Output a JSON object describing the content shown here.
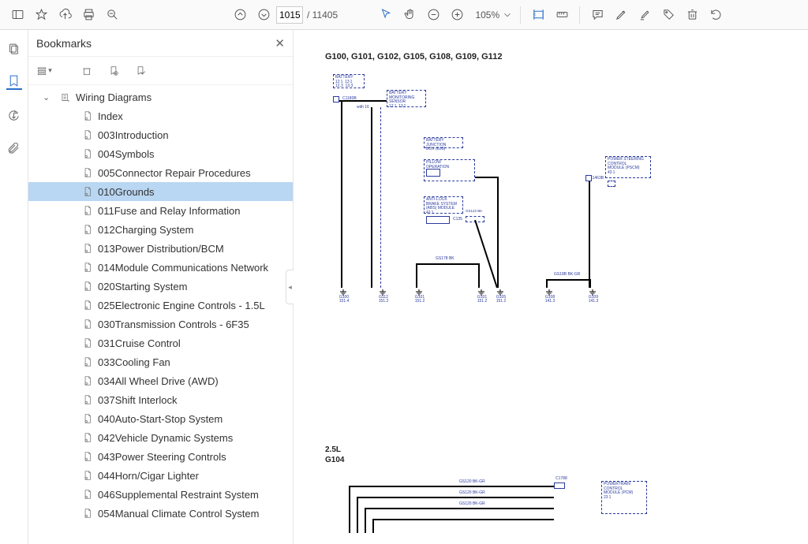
{
  "toolbar": {
    "current_page": "1015",
    "total_pages": "11405",
    "zoom": "105%"
  },
  "sidebar": {
    "title": "Bookmarks",
    "root": "Wiring Diagrams",
    "items": [
      {
        "label": "Index",
        "selected": false
      },
      {
        "label": "003Introduction",
        "selected": false
      },
      {
        "label": "004Symbols",
        "selected": false
      },
      {
        "label": "005Connector Repair Procedures",
        "selected": false
      },
      {
        "label": "010Grounds",
        "selected": true
      },
      {
        "label": "011Fuse and Relay Information",
        "selected": false
      },
      {
        "label": "012Charging System",
        "selected": false
      },
      {
        "label": "013Power Distribution/BCM",
        "selected": false
      },
      {
        "label": "014Module Communications Network",
        "selected": false
      },
      {
        "label": "020Starting System",
        "selected": false
      },
      {
        "label": "025Electronic Engine Controls - 1.5L",
        "selected": false
      },
      {
        "label": "030Transmission Controls - 6F35",
        "selected": false
      },
      {
        "label": "031Cruise Control",
        "selected": false
      },
      {
        "label": "033Cooling Fan",
        "selected": false
      },
      {
        "label": "034All Wheel Drive (AWD)",
        "selected": false
      },
      {
        "label": "037Shift Interlock",
        "selected": false
      },
      {
        "label": "040Auto-Start-Stop System",
        "selected": false
      },
      {
        "label": "042Vehicle Dynamic Systems",
        "selected": false
      },
      {
        "label": "043Power Steering Controls",
        "selected": false
      },
      {
        "label": "044Horn/Cigar Lighter",
        "selected": false
      },
      {
        "label": "046Supplemental Restraint System",
        "selected": false
      },
      {
        "label": "054Manual Climate Control System",
        "selected": false
      }
    ]
  },
  "document": {
    "heading": "G100, G101, G102, G105, G108, G109, G112",
    "sub_heading": "2.5L\nG104",
    "boxes": {
      "battery": "BATTERY\n12 1  13 1\n12.3  13.3",
      "bms": "BATTERY\nMONITORING\nSENSOR\n12 1  13 1",
      "bjb": "BATTERY\nJUNCTION\nBOX (BJB)",
      "pillow": "PILLOW\nOPERATION",
      "abs": "ANTI-LOCK\nBRAKE SYSTEM\n(ABS) MODULE\n42 1",
      "pscm": "POWER STEERING\nCONTROL\nMODULE (PSCM)\n43 1",
      "pcm": "POWERTRAIN\nCONTROL\nMODULE (PCM)\n23 1"
    },
    "connectors": {
      "c1": "C1180B",
      "c2": "C135",
      "c3": "GS122   BK",
      "c4": "C1463B",
      "c5": "GS178  BK",
      "c6": "GS18B  BK-GR",
      "c7": "C1788",
      "c8": "GS120  BK-GR",
      "c9": "GS120  BK-GR",
      "c10": "GS120  BK-GR",
      "c11": "with 16"
    },
    "grounds": [
      {
        "t1": "G100",
        "t2": "151.4"
      },
      {
        "t1": "G112",
        "t2": "151.2"
      },
      {
        "t1": "G101",
        "t2": "151.2"
      },
      {
        "t1": "G101",
        "t2": "151.2"
      },
      {
        "t1": "G105",
        "t2": "151.2"
      },
      {
        "t1": "G108",
        "t2": "141.3"
      },
      {
        "t1": "G109",
        "t2": "141.3"
      }
    ]
  },
  "colors": {
    "accent": "#2a6fc9",
    "diagram": "#2a3a9f",
    "selected_bg": "#b9d6f2"
  }
}
